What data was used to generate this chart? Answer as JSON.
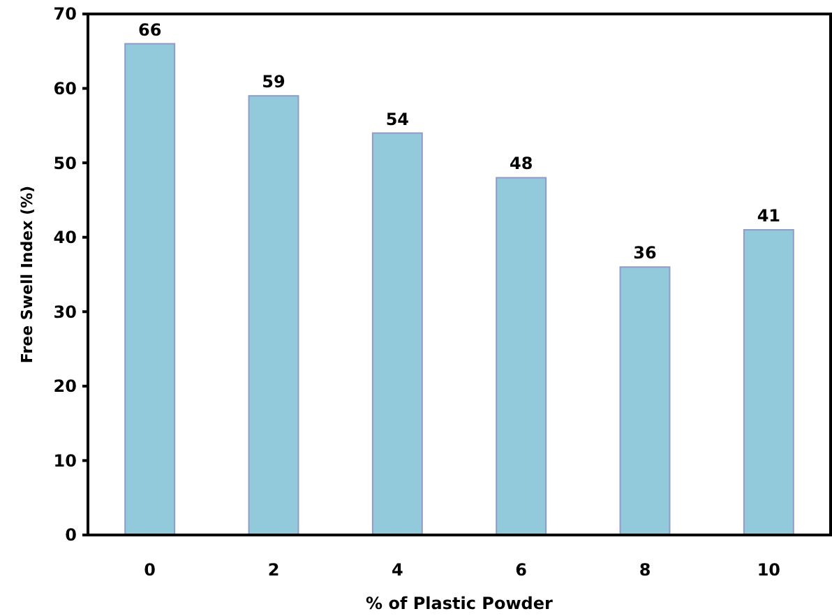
{
  "chart_data": {
    "type": "bar",
    "xlabel": "% of Plastic Powder",
    "ylabel": "Free Swell Index (%)",
    "categories": [
      "0",
      "2",
      "4",
      "6",
      "8",
      "10"
    ],
    "values": [
      66,
      59,
      54,
      48,
      36,
      41
    ],
    "color": "#92cadc",
    "ylim": [
      0,
      70
    ],
    "yticks": [
      0,
      10,
      20,
      30,
      40,
      50,
      60,
      70
    ],
    "data_labels": true,
    "grid": false
  }
}
